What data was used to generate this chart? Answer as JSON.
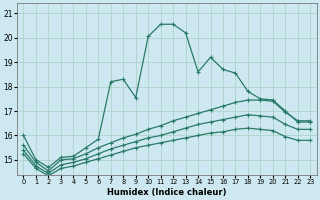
{
  "xlabel": "Humidex (Indice chaleur)",
  "bg_color": "#cde8f0",
  "grid_color": "#a8cfc0",
  "line_color": "#2a7a6a",
  "xlim": [
    -0.5,
    23.5
  ],
  "ylim": [
    14.4,
    21.4
  ],
  "yticks": [
    15,
    16,
    17,
    18,
    19,
    20,
    21
  ],
  "xticks": [
    0,
    1,
    2,
    3,
    4,
    5,
    6,
    7,
    8,
    9,
    10,
    11,
    12,
    13,
    14,
    15,
    16,
    17,
    18,
    19,
    20,
    21,
    22,
    23
  ],
  "line1_y": [
    16.0,
    15.0,
    14.7,
    15.1,
    15.15,
    15.5,
    15.85,
    18.2,
    18.3,
    17.55,
    20.05,
    20.55,
    20.55,
    20.2,
    18.6,
    19.2,
    18.7,
    18.55,
    17.8,
    17.5,
    17.45,
    17.0,
    16.55,
    16.55
  ],
  "line2_y": [
    15.6,
    14.9,
    14.55,
    15.0,
    15.05,
    15.25,
    15.5,
    15.7,
    15.9,
    16.05,
    16.25,
    16.4,
    16.6,
    16.75,
    16.9,
    17.05,
    17.2,
    17.35,
    17.45,
    17.45,
    17.4,
    16.95,
    16.6,
    16.6
  ],
  "line3_y": [
    15.4,
    14.75,
    14.45,
    14.8,
    14.9,
    15.05,
    15.25,
    15.45,
    15.6,
    15.75,
    15.9,
    16.0,
    16.15,
    16.3,
    16.45,
    16.55,
    16.65,
    16.75,
    16.85,
    16.8,
    16.75,
    16.45,
    16.25,
    16.25
  ],
  "line4_y": [
    15.25,
    14.65,
    14.35,
    14.65,
    14.75,
    14.9,
    15.05,
    15.2,
    15.35,
    15.5,
    15.6,
    15.7,
    15.8,
    15.9,
    16.0,
    16.1,
    16.15,
    16.25,
    16.3,
    16.25,
    16.2,
    15.95,
    15.8,
    15.8
  ]
}
